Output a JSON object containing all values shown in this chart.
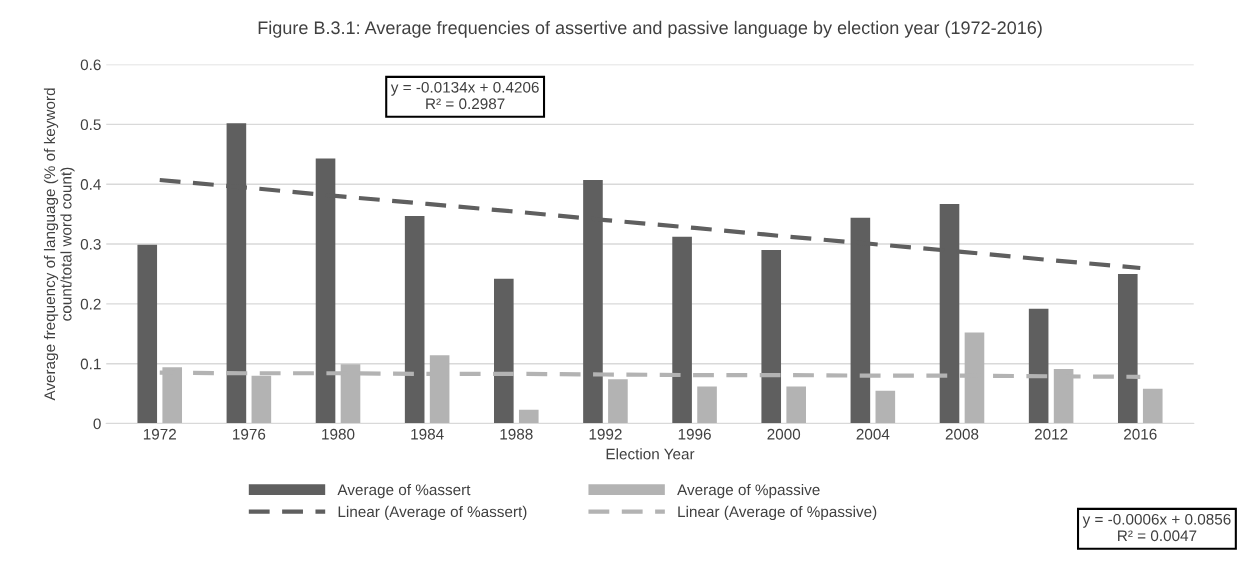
{
  "chart_data": {
    "type": "bar",
    "title": "Figure B.3.1: Average frequencies of assertive and passive language by election year (1972-2016)",
    "xlabel": "Election Year",
    "ylabel": "Average frequency of language (% of keyword\ncount/total word count)",
    "categories": [
      "1972",
      "1976",
      "1980",
      "1984",
      "1988",
      "1992",
      "1996",
      "2000",
      "2004",
      "2008",
      "2012",
      "2016"
    ],
    "series": [
      {
        "name": "Average of %assert",
        "color": "#5f5f5f",
        "values": [
          0.299,
          0.502,
          0.443,
          0.347,
          0.242,
          0.407,
          0.312,
          0.29,
          0.344,
          0.367,
          0.192,
          0.25
        ]
      },
      {
        "name": "Average of %passive",
        "color": "#b3b3b3",
        "values": [
          0.094,
          0.08,
          0.099,
          0.114,
          0.023,
          0.074,
          0.062,
          0.062,
          0.055,
          0.152,
          0.091,
          0.058
        ]
      },
      {
        "name": "Linear (Average of %assert)",
        "type": "line",
        "line_style": "dashed",
        "color": "#5f5f5f",
        "values": [
          0.407,
          0.394,
          0.38,
          0.367,
          0.354,
          0.34,
          0.327,
          0.313,
          0.3,
          0.287,
          0.273,
          0.26
        ]
      },
      {
        "name": "Linear (Average of %passive)",
        "type": "line",
        "line_style": "dashed",
        "color": "#b3b3b3",
        "values": [
          0.085,
          0.084,
          0.084,
          0.083,
          0.083,
          0.082,
          0.081,
          0.081,
          0.08,
          0.08,
          0.079,
          0.078
        ]
      }
    ],
    "ylim": [
      0,
      0.6
    ],
    "yticks": [
      0,
      0.1,
      0.2,
      0.3,
      0.4,
      0.5,
      0.6
    ],
    "grid": "y",
    "legend": "bottom",
    "annotations": [
      "y = -0.0134x + 0.4206\nR² = 0.2987",
      "y = -0.0006x + 0.0856\nR² = 0.0047"
    ]
  }
}
